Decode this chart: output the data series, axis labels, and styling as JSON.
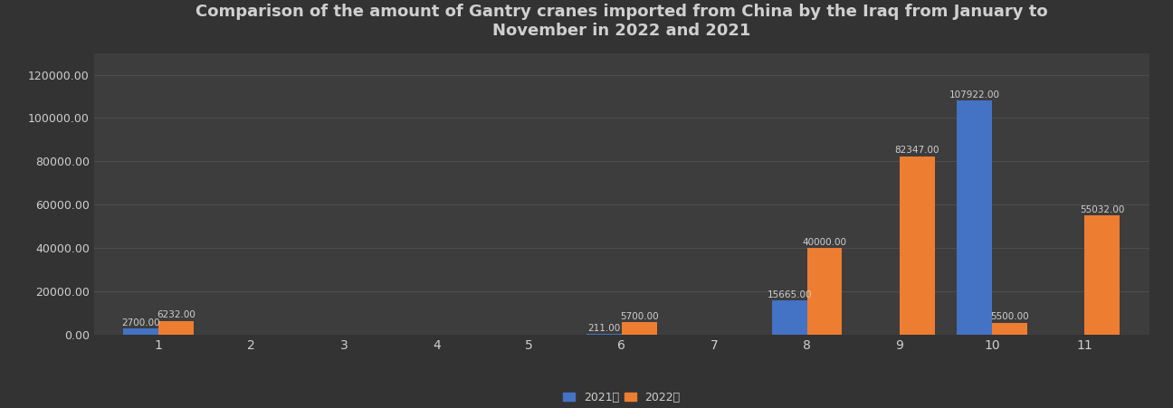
{
  "title": "Comparison of the amount of Gantry cranes imported from China by the Iraq from January to\nNovember in 2022 and 2021",
  "months": [
    1,
    2,
    3,
    4,
    5,
    6,
    7,
    8,
    9,
    10,
    11
  ],
  "values_2021": [
    2700.0,
    0,
    0,
    0,
    0,
    211.0,
    0,
    15665.0,
    0,
    107922.0,
    0
  ],
  "values_2022": [
    6232.0,
    0,
    0,
    0,
    0,
    5700.0,
    0,
    40000.0,
    82347.0,
    5500.0,
    55032.0
  ],
  "color_2021": "#4472C4",
  "color_2022": "#ED7D31",
  "background_color": "#333333",
  "plot_bg_color": "#3d3d3d",
  "grid_color": "#666666",
  "text_color": "#d0d0d0",
  "legend_2021": "2021年",
  "legend_2022": "2022年",
  "ylim": [
    0,
    130000
  ],
  "yticks": [
    0,
    20000,
    40000,
    60000,
    80000,
    100000,
    120000
  ],
  "title_fontsize": 13,
  "bar_width": 0.38,
  "label_fontsize": 7.5
}
